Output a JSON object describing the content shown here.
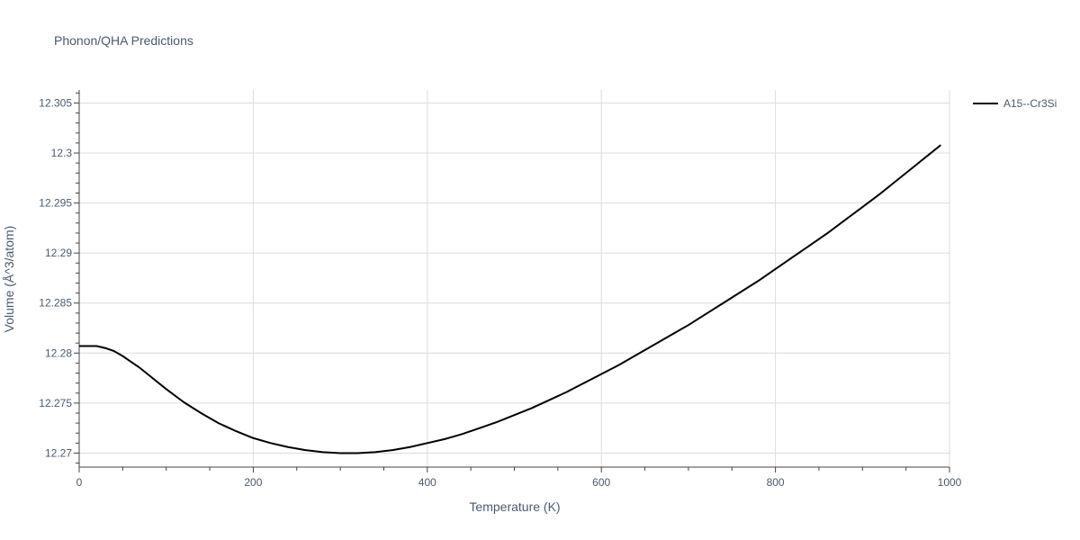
{
  "chart_data": {
    "type": "line",
    "title": "Phonon/QHA Predictions",
    "xlabel": "Temperature (K)",
    "ylabel": "Volume (Å^3/atom)",
    "xlim": [
      0,
      1000
    ],
    "ylim": [
      12.2686,
      12.3063
    ],
    "x_ticks": [
      {
        "value": 0,
        "label": "0"
      },
      {
        "value": 200,
        "label": "200"
      },
      {
        "value": 400,
        "label": "400"
      },
      {
        "value": 600,
        "label": "600"
      },
      {
        "value": 800,
        "label": "800"
      },
      {
        "value": 1000,
        "label": "1000"
      }
    ],
    "y_ticks": [
      {
        "value": 12.27,
        "label": "12.27"
      },
      {
        "value": 12.275,
        "label": "12.275"
      },
      {
        "value": 12.28,
        "label": "12.28"
      },
      {
        "value": 12.285,
        "label": "12.285"
      },
      {
        "value": 12.29,
        "label": "12.29"
      },
      {
        "value": 12.295,
        "label": "12.295"
      },
      {
        "value": 12.3,
        "label": "12.3"
      },
      {
        "value": 12.305,
        "label": "12.305"
      }
    ],
    "grid": true,
    "legend_position": "top-right",
    "series": [
      {
        "name": "A15--Cr3Si",
        "color": "#000000",
        "x": [
          0,
          10,
          20,
          30,
          40,
          50,
          60,
          70,
          80,
          100,
          120,
          140,
          160,
          180,
          200,
          220,
          240,
          260,
          280,
          300,
          320,
          340,
          360,
          380,
          400,
          420,
          440,
          460,
          480,
          500,
          520,
          540,
          560,
          580,
          600,
          620,
          640,
          660,
          680,
          700,
          720,
          740,
          760,
          780,
          800,
          820,
          840,
          860,
          880,
          900,
          920,
          940,
          960,
          980,
          990
        ],
        "y": [
          12.2807,
          12.2807,
          12.2807,
          12.2805,
          12.2802,
          12.2797,
          12.2791,
          12.2785,
          12.2778,
          12.2764,
          12.2751,
          12.274,
          12.273,
          12.2722,
          12.2715,
          12.271,
          12.2706,
          12.2703,
          12.2701,
          12.27,
          12.27,
          12.2701,
          12.2703,
          12.2706,
          12.271,
          12.2714,
          12.2719,
          12.2725,
          12.2731,
          12.2738,
          12.2745,
          12.2753,
          12.2761,
          12.277,
          12.2779,
          12.2788,
          12.2798,
          12.2808,
          12.2818,
          12.2828,
          12.2839,
          12.285,
          12.2861,
          12.2872,
          12.2884,
          12.2896,
          12.2908,
          12.292,
          12.2933,
          12.2946,
          12.2959,
          12.2973,
          12.2987,
          12.3001,
          12.3008
        ]
      }
    ]
  }
}
